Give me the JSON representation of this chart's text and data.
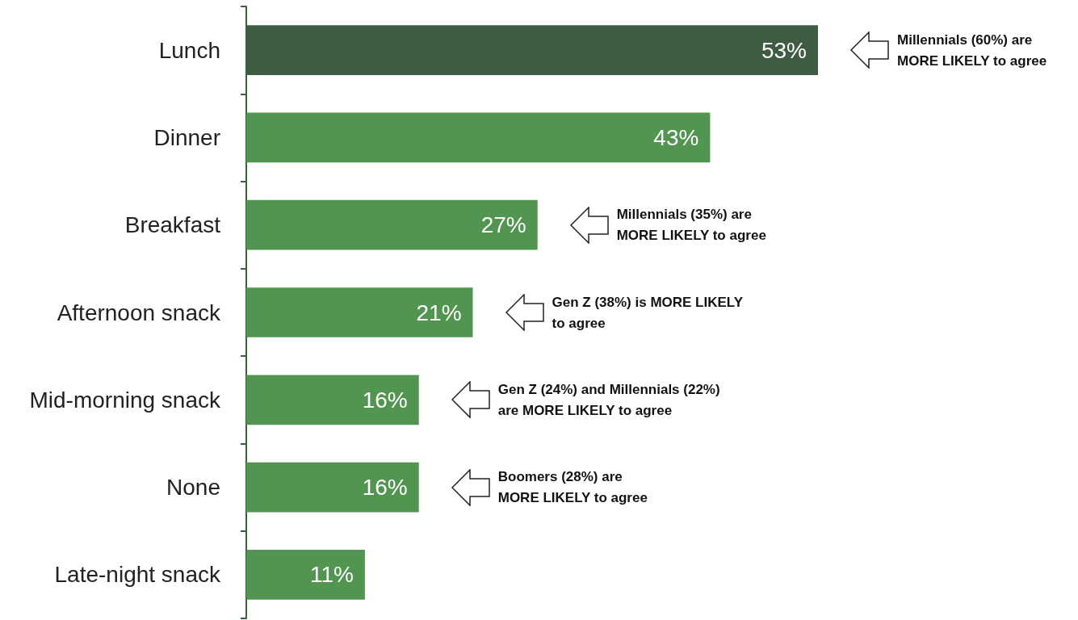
{
  "chart_data": {
    "type": "bar",
    "orientation": "horizontal",
    "categories": [
      "Lunch",
      "Dinner",
      "Breakfast",
      "Afternoon snack",
      "Mid-morning snack",
      "None",
      "Late-night snack"
    ],
    "values": [
      53,
      43,
      27,
      21,
      16,
      16,
      11
    ],
    "colors": [
      "#3f5b42",
      "#529550",
      "#529550",
      "#529550",
      "#529550",
      "#529550",
      "#529550"
    ],
    "value_labels": [
      "53%",
      "43%",
      "27%",
      "21%",
      "16%",
      "16%",
      "11%"
    ],
    "annotations": [
      "Millennials (60%) are\nMORE LIKELY to agree",
      "Millennials (35%) are\nMORE LIKELY to agree",
      "Gen Z (38%) is MORE LIKELY\nto agree",
      "Gen Z (24%) and Millennials (22%)\nare MORE LIKELY to agree",
      "Boomers (28%) are\nMORE LIKELY to agree"
    ],
    "grid": false
  }
}
